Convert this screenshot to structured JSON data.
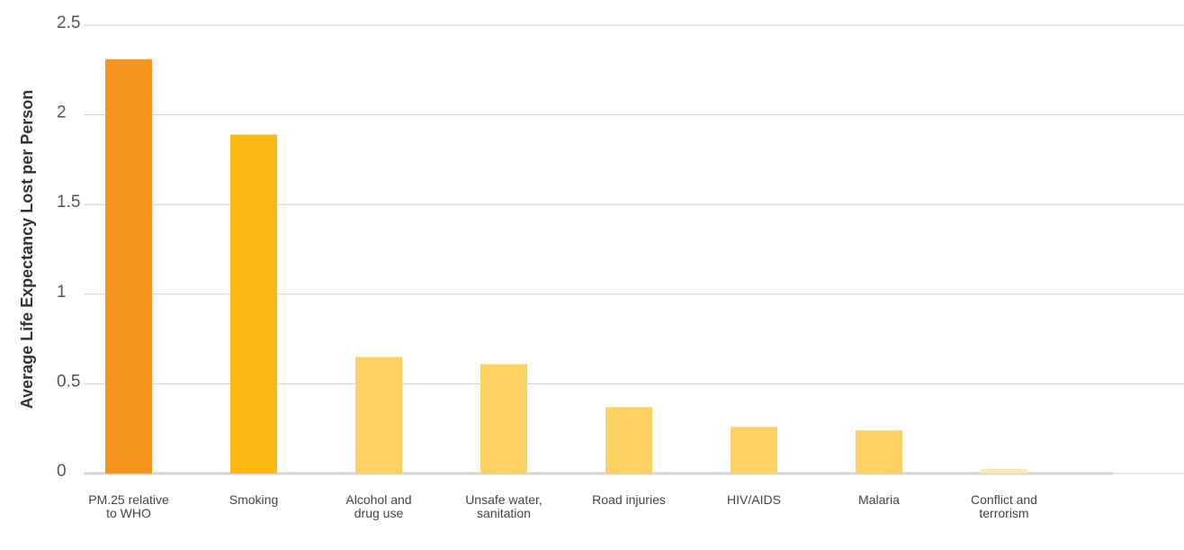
{
  "chart_data": {
    "type": "bar",
    "y_label": "Average Life Expectancy Lost per Person",
    "categories": [
      "PM.25 relative to WHO",
      "Smoking",
      "Alcohol and drug use",
      "Unsafe water, sanitation",
      "Road injuries",
      "HIV/AIDS",
      "Malaria",
      "Conflict and terrorism"
    ],
    "values": [
      2.31,
      1.89,
      0.65,
      0.61,
      0.37,
      0.26,
      0.24,
      0.025
    ],
    "colors": [
      "#f7941d",
      "#fdb813",
      "#fdd163",
      "#fdd163",
      "#fdd163",
      "#fdd163",
      "#fdd163",
      "#fde8b0"
    ],
    "ylim": [
      0,
      2.5
    ],
    "yticks": [
      0,
      0.5,
      1,
      1.5,
      2,
      2.5
    ],
    "grid": true
  }
}
